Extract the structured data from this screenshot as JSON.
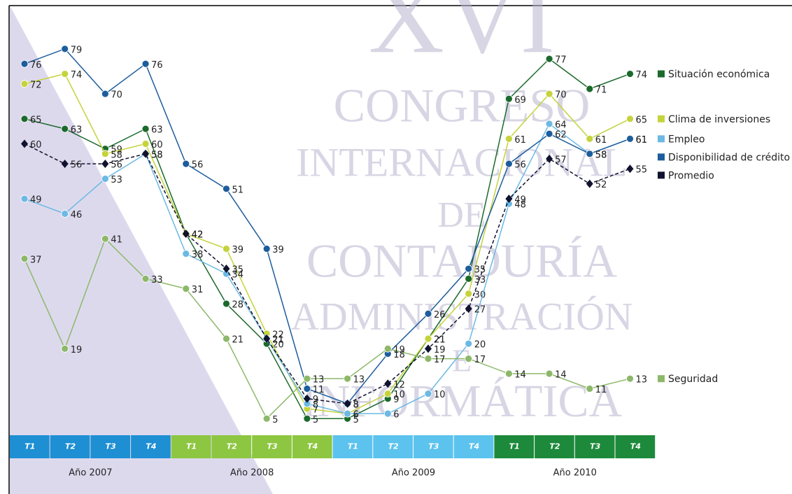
{
  "watermark": [
    "XVI",
    "CONGRESO",
    "INTERNACIONAL",
    "DE",
    "CONTADURÍA",
    "ADMINISTRACIÓN",
    "E",
    "INFORMÁTICA"
  ],
  "chart_data": {
    "type": "line",
    "categories": [
      "T1",
      "T2",
      "T3",
      "T4",
      "T1",
      "T2",
      "T3",
      "T4",
      "T1",
      "T2",
      "T3",
      "T4",
      "T1",
      "T2",
      "T3",
      "T4"
    ],
    "groups": [
      {
        "label": "Año 2007",
        "color": "#1e8fd3"
      },
      {
        "label": "Año 2008",
        "color": "#8dc641"
      },
      {
        "label": "Año 2009",
        "color": "#5cc3ee"
      },
      {
        "label": "Año 2010",
        "color": "#1d8a3b"
      }
    ],
    "ylim": [
      0,
      85
    ],
    "series": [
      {
        "name": "Situación económica",
        "color": "#1b6a2c",
        "values": [
          65,
          63,
          59,
          63,
          42,
          28,
          20,
          5,
          5,
          9,
          21,
          33,
          69,
          77,
          71,
          74
        ]
      },
      {
        "name": "Clima de inversiones",
        "color": "#c5d33c",
        "values": [
          72,
          74,
          58,
          60,
          42,
          39,
          22,
          7,
          6,
          10,
          21,
          30,
          61,
          70,
          61,
          65
        ]
      },
      {
        "name": "Empleo",
        "color": "#6cb9e3",
        "values": [
          49,
          46,
          53,
          58,
          38,
          34,
          21,
          8,
          6,
          6,
          10,
          20,
          48,
          64,
          58,
          61
        ]
      },
      {
        "name": "Disponibilidad de crédito",
        "color": "#1d5d9c",
        "values": [
          76,
          79,
          70,
          76,
          56,
          51,
          39,
          11,
          8,
          18,
          26,
          35,
          56,
          62,
          58,
          61
        ]
      },
      {
        "name": "Promedio",
        "color": "#10122e",
        "dashed": true,
        "marker": "diamond",
        "values": [
          60,
          56,
          56,
          58,
          42,
          35,
          21,
          9,
          8,
          12,
          19,
          27,
          49,
          57,
          52,
          55
        ]
      },
      {
        "name": "Seguridad",
        "color": "#8db86a",
        "values": [
          37,
          19,
          41,
          33,
          31,
          21,
          5,
          13,
          13,
          19,
          17,
          17,
          14,
          14,
          11,
          13
        ]
      }
    ]
  }
}
